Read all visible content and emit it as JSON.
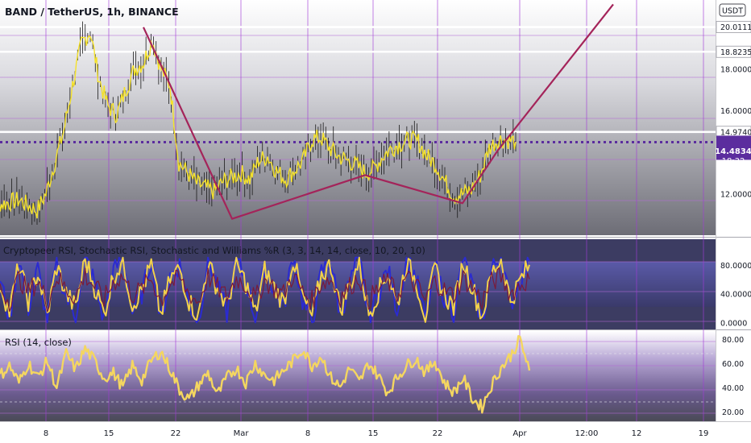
{
  "header": {
    "symbol_title": "BAND / TetherUS, 1h, BINANCE",
    "currency_button": "USDT"
  },
  "price_pane": {
    "last_price_label": "14.4834",
    "countdown_label": "18:32",
    "level_labels": [
      "20.0111",
      "18.8235",
      "14.9740"
    ]
  },
  "colors": {
    "price_series": "#f5e22a",
    "candle_wick": "#1a1a1a",
    "pattern_lines": "#a4245a",
    "horizontal_levels": "#ffffff",
    "dotted_level": "#5b2d9e",
    "last_price_badge": "#5b2d9e",
    "vertical_grid": "#a23bd8",
    "rsi_line": "#f4d660",
    "stoch_k": "#2b2bd0",
    "stoch_d": "#f2d14a",
    "williams": "#7a1b3a"
  },
  "chart_data": [
    {
      "type": "line",
      "pane": "price",
      "title": "BAND / TetherUS, 1h, BINANCE",
      "ylim": [
        10.4,
        21.0
      ],
      "y_ticks": [
        "20.0111",
        "18.8235",
        "18.0000",
        "16.0000",
        "14.9740",
        "14.4834",
        "12.0000"
      ],
      "x_ticks": [
        "8",
        "15",
        "22",
        "Mar",
        "8",
        "15",
        "22",
        "Apr",
        "12:00",
        "12",
        "19"
      ],
      "horizontal_levels": [
        20.0111,
        18.8235,
        14.974
      ],
      "dotted_level": 14.4834,
      "last_price": 14.4834,
      "series": [
        {
          "x": [
            "Feb 1",
            "Feb 3",
            "Feb 5",
            "Feb 7",
            "Feb 8",
            "Feb 9",
            "Feb 10",
            "Feb 11",
            "Feb 12",
            "Feb 13",
            "Feb 14",
            "Feb 15",
            "Feb 16",
            "Feb 17",
            "Feb 18",
            "Feb 19",
            "Feb 20",
            "Feb 21",
            "Feb 22",
            "Feb 23",
            "Feb 24",
            "Feb 25",
            "Feb 26",
            "Feb 27",
            "Feb 28",
            "Mar 1",
            "Mar 2",
            "Mar 3",
            "Mar 4",
            "Mar 5",
            "Mar 6",
            "Mar 7",
            "Mar 8",
            "Mar 9",
            "Mar 10",
            "Mar 11",
            "Mar 12",
            "Mar 13",
            "Mar 14",
            "Mar 15",
            "Mar 16",
            "Mar 17",
            "Mar 18",
            "Mar 19",
            "Mar 20",
            "Mar 21",
            "Mar 22",
            "Mar 23",
            "Mar 24",
            "Mar 25",
            "Mar 26",
            "Mar 27",
            "Mar 28",
            "Mar 29",
            "Mar 30",
            "Mar 31",
            "Apr 1"
          ],
          "values": [
            12.0,
            11.5,
            11.7,
            11.2,
            12.0,
            13.5,
            15.0,
            17.2,
            19.2,
            19.8,
            17.5,
            16.2,
            15.8,
            17.0,
            18.0,
            18.3,
            19.4,
            18.0,
            17.2,
            13.5,
            13.0,
            12.5,
            12.3,
            12.1,
            12.6,
            13.0,
            12.7,
            13.6,
            13.8,
            13.1,
            12.7,
            13.1,
            13.6,
            14.6,
            14.7,
            14.2,
            13.8,
            13.6,
            13.4,
            13.0,
            13.2,
            13.8,
            14.2,
            14.4,
            14.6,
            14.5,
            13.8,
            13.4,
            12.6,
            11.9,
            12.0,
            12.2,
            12.9,
            14.2,
            14.6,
            14.6,
            14.5
          ]
        }
      ],
      "pattern_line": [
        {
          "x": "Feb 19",
          "y": 20.0
        },
        {
          "x": "Feb 29",
          "y": 10.8
        },
        {
          "x": "Mar 15",
          "y": 12.9
        },
        {
          "x": "Mar 26",
          "y": 11.55
        },
        {
          "x": "Mar 30",
          "y": 14.1
        },
        {
          "x": "Apr 12",
          "y": 21.1
        }
      ]
    },
    {
      "type": "line",
      "pane": "oscillator",
      "title": "Cryptopeer RSI, Stochastic RSI, Stochastic and Williams %R (3, 3, 14, 14, close, 10, 20, 10)",
      "ylim": [
        -4,
        92
      ],
      "y_ticks": [
        "80.0000",
        "40.0000",
        "0.0000"
      ],
      "bands": [
        20,
        80
      ],
      "series": [
        {
          "name": "stochastic-k",
          "color_key": "stoch_k",
          "values": [
            60,
            5,
            90,
            20,
            75,
            0,
            85,
            35,
            10,
            95,
            55,
            3,
            70,
            92,
            15,
            40,
            88,
            2,
            65,
            80,
            25,
            0,
            90,
            50,
            12,
            86,
            60,
            4,
            78,
            45,
            20,
            95,
            30,
            0,
            70,
            85,
            10,
            55,
            92,
            5,
            40,
            75,
            18,
            88,
            62,
            2,
            80,
            35,
            15,
            90,
            50,
            0,
            72,
            95,
            25,
            60,
            85
          ]
        },
        {
          "name": "stochastic-d",
          "color_key": "stoch_d",
          "values": [
            55,
            15,
            80,
            30,
            70,
            10,
            78,
            40,
            20,
            88,
            50,
            12,
            65,
            85,
            25,
            45,
            80,
            10,
            60,
            75,
            30,
            8,
            82,
            48,
            22,
            80,
            55,
            12,
            72,
            48,
            28,
            88,
            35,
            8,
            66,
            80,
            18,
            52,
            85,
            12,
            42,
            70,
            25,
            82,
            58,
            10,
            75,
            38,
            22,
            84,
            48,
            8,
            68,
            88,
            30,
            58,
            80
          ]
        },
        {
          "name": "williams",
          "color_key": "williams",
          "values": [
            48,
            30,
            62,
            42,
            58,
            28,
            64,
            46,
            35,
            66,
            50,
            32,
            56,
            64,
            38,
            46,
            62,
            30,
            54,
            60,
            40,
            28,
            64,
            48,
            36,
            62,
            52,
            32,
            58,
            48,
            40,
            66,
            42,
            30,
            56,
            60,
            36,
            50,
            64,
            32,
            46,
            58,
            38,
            62,
            52,
            30,
            58,
            44,
            38,
            62,
            48,
            30,
            56,
            64,
            40,
            52,
            60
          ]
        }
      ]
    },
    {
      "type": "line",
      "pane": "rsi",
      "title": "RSI (14, close)",
      "ylim": [
        14,
        86
      ],
      "y_ticks": [
        "80.00",
        "60.00",
        "40.00",
        "20.00"
      ],
      "bands": [
        30,
        70
      ],
      "series": [
        {
          "name": "rsi",
          "color_key": "rsi_line",
          "values": [
            50,
            58,
            44,
            60,
            48,
            62,
            40,
            68,
            55,
            72,
            62,
            48,
            52,
            40,
            58,
            46,
            62,
            70,
            55,
            38,
            30,
            42,
            52,
            34,
            48,
            56,
            44,
            60,
            50,
            46,
            54,
            62,
            72,
            58,
            66,
            48,
            40,
            56,
            44,
            60,
            50,
            36,
            48,
            58,
            64,
            52,
            62,
            44,
            36,
            48,
            30,
            24,
            42,
            56,
            66,
            80,
            54
          ]
        }
      ]
    }
  ]
}
